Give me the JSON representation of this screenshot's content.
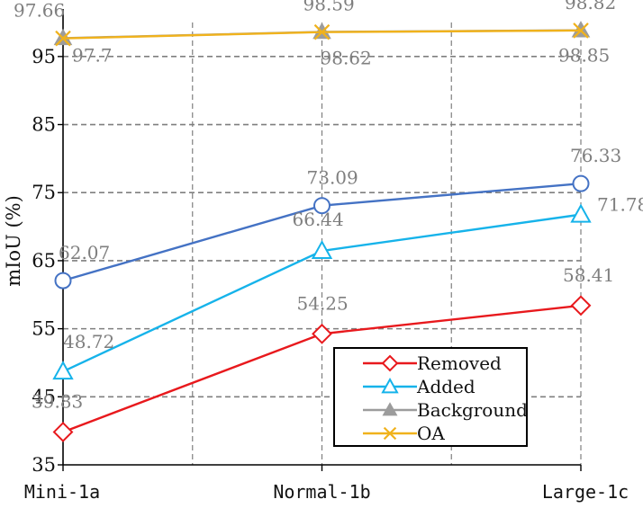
{
  "chart_data": {
    "type": "line",
    "title": "",
    "xlabel": "",
    "ylabel": "mIoU (%)",
    "categories": [
      "Mini-1a",
      "Normal-1b",
      "Large-1c"
    ],
    "ylim": [
      35,
      100
    ],
    "yticks": [
      35,
      45,
      55,
      65,
      75,
      85,
      95
    ],
    "grid": true,
    "legend_position": "bottom-right",
    "series": [
      {
        "name": "Removed",
        "values": [
          39.83,
          54.25,
          58.41
        ],
        "labels": [
          "39.83",
          "54.25",
          "58.41"
        ],
        "color": "#e8191d",
        "marker": "diamond"
      },
      {
        "name": "Added",
        "values": [
          48.72,
          66.44,
          71.78
        ],
        "labels": [
          "48.72",
          "66.44",
          "71.78"
        ],
        "color": "#16b3ea",
        "marker": "triangle"
      },
      {
        "name": "Background",
        "values": [
          97.7,
          98.62,
          98.85
        ],
        "labels": [
          "97.7",
          "98.62",
          "98.85"
        ],
        "color": "#9c9c9c",
        "marker": "triangle-filled"
      },
      {
        "name": "OA",
        "values": [
          97.66,
          98.59,
          98.82
        ],
        "labels": [
          "97.66",
          "98.59",
          "98.82"
        ],
        "color": "#f0b21c",
        "marker": "x"
      },
      {
        "name": "",
        "values": [
          62.07,
          73.09,
          76.33
        ],
        "labels": [
          "62.07",
          "73.09",
          "76.33"
        ],
        "color": "#4472c4",
        "marker": "circle"
      }
    ]
  }
}
